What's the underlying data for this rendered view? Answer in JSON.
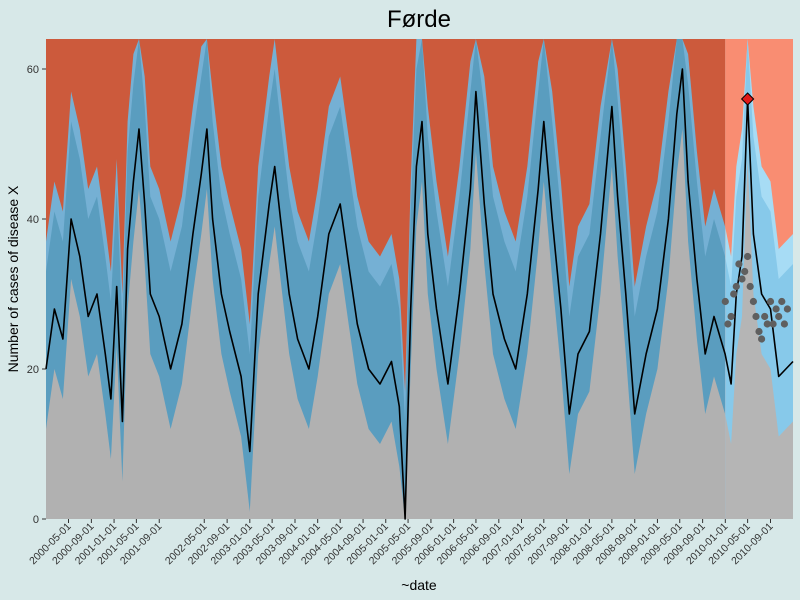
{
  "chart_data": {
    "type": "area",
    "title": "Førde",
    "xlabel": "~date",
    "ylabel": "Number of cases of disease X",
    "ylim": [
      0,
      64
    ],
    "xlim": [
      "2000-01-01",
      "2010-12-31"
    ],
    "forecast_start": "2010-01-01",
    "y_ticks": [
      0,
      20,
      40,
      60
    ],
    "x_ticks": [
      "2000-05-01",
      "2000-09-01",
      "2001-01-01",
      "2001-05-01",
      "2001-09-01",
      "2002-05-01",
      "2002-09-01",
      "2003-01-01",
      "2003-05-01",
      "2003-09-01",
      "2004-01-01",
      "2004-05-01",
      "2004-09-01",
      "2005-01-01",
      "2005-05-01",
      "2005-09-01",
      "2006-01-01",
      "2006-05-01",
      "2006-09-01",
      "2007-01-01",
      "2007-05-01",
      "2007-09-01",
      "2008-01-01",
      "2008-05-01",
      "2008-09-01",
      "2009-01-01",
      "2009-05-01",
      "2009-09-01",
      "2010-01-01",
      "2010-05-01",
      "2010-09-01"
    ],
    "bands": {
      "low": {
        "historical": "#b1b1b1",
        "forecast": "#b5b5b5"
      },
      "normal": {
        "historical": "#5a9dbf",
        "forecast": "#87c9ea"
      },
      "medium": {
        "historical": "#75b0d4",
        "forecast": "#a7dcf5"
      },
      "high": {
        "historical": "#cc5a3c",
        "forecast": "#f98d72"
      }
    },
    "series": [
      {
        "type": "line",
        "color": "#000000",
        "points": [
          [
            "2000-01-01",
            20
          ],
          [
            "2000-02-15",
            28
          ],
          [
            "2000-04-01",
            24
          ],
          [
            "2000-05-15",
            40
          ],
          [
            "2000-07-01",
            35
          ],
          [
            "2000-08-15",
            27
          ],
          [
            "2000-10-01",
            30
          ],
          [
            "2000-11-15",
            22
          ],
          [
            "2000-12-15",
            16
          ],
          [
            "2001-01-15",
            31
          ],
          [
            "2001-02-15",
            13
          ],
          [
            "2001-03-15",
            36
          ],
          [
            "2001-04-15",
            45
          ],
          [
            "2001-05-15",
            52
          ],
          [
            "2001-06-15",
            42
          ],
          [
            "2001-07-15",
            30
          ],
          [
            "2001-09-01",
            27
          ],
          [
            "2001-11-01",
            20
          ],
          [
            "2002-01-01",
            26
          ],
          [
            "2002-03-01",
            38
          ],
          [
            "2002-04-15",
            46
          ],
          [
            "2002-05-15",
            52
          ],
          [
            "2002-06-15",
            40
          ],
          [
            "2002-08-01",
            30
          ],
          [
            "2002-09-15",
            25
          ],
          [
            "2002-11-15",
            19
          ],
          [
            "2003-01-01",
            9
          ],
          [
            "2003-02-15",
            30
          ],
          [
            "2003-04-15",
            42
          ],
          [
            "2003-05-15",
            47
          ],
          [
            "2003-06-15",
            40
          ],
          [
            "2003-08-01",
            30
          ],
          [
            "2003-09-15",
            24
          ],
          [
            "2003-11-15",
            20
          ],
          [
            "2004-01-01",
            27
          ],
          [
            "2004-03-01",
            38
          ],
          [
            "2004-05-01",
            42
          ],
          [
            "2004-06-15",
            34
          ],
          [
            "2004-08-01",
            26
          ],
          [
            "2004-10-01",
            20
          ],
          [
            "2004-12-01",
            18
          ],
          [
            "2005-02-01",
            21
          ],
          [
            "2005-03-15",
            15
          ],
          [
            "2005-04-15",
            0
          ],
          [
            "2005-05-15",
            28
          ],
          [
            "2005-06-15",
            47
          ],
          [
            "2005-07-15",
            53
          ],
          [
            "2005-08-15",
            38
          ],
          [
            "2005-10-01",
            28
          ],
          [
            "2005-12-01",
            18
          ],
          [
            "2006-02-01",
            30
          ],
          [
            "2006-04-01",
            44
          ],
          [
            "2006-05-01",
            57
          ],
          [
            "2006-06-15",
            42
          ],
          [
            "2006-08-01",
            30
          ],
          [
            "2006-10-01",
            24
          ],
          [
            "2006-12-01",
            20
          ],
          [
            "2007-02-01",
            30
          ],
          [
            "2007-04-01",
            44
          ],
          [
            "2007-05-01",
            53
          ],
          [
            "2007-06-15",
            40
          ],
          [
            "2007-08-01",
            28
          ],
          [
            "2007-09-15",
            14
          ],
          [
            "2007-11-01",
            22
          ],
          [
            "2008-01-01",
            25
          ],
          [
            "2008-03-01",
            38
          ],
          [
            "2008-05-01",
            55
          ],
          [
            "2008-06-01",
            43
          ],
          [
            "2008-07-15",
            30
          ],
          [
            "2008-09-01",
            14
          ],
          [
            "2008-11-01",
            22
          ],
          [
            "2009-01-01",
            28
          ],
          [
            "2009-03-01",
            40
          ],
          [
            "2009-04-15",
            54
          ],
          [
            "2009-05-15",
            60
          ],
          [
            "2009-06-15",
            45
          ],
          [
            "2009-08-01",
            32
          ],
          [
            "2009-09-15",
            22
          ],
          [
            "2009-11-01",
            27
          ],
          [
            "2009-12-31",
            22
          ],
          [
            "2010-02-01",
            18
          ],
          [
            "2010-03-01",
            30
          ],
          [
            "2010-04-01",
            35
          ],
          [
            "2010-05-01",
            56
          ],
          [
            "2010-06-01",
            38
          ],
          [
            "2010-07-15",
            30
          ],
          [
            "2010-09-01",
            28
          ],
          [
            "2010-10-15",
            19
          ],
          [
            "2010-12-31",
            21
          ]
        ]
      },
      {
        "type": "scatter",
        "color": "#5f5f5f",
        "points": [
          [
            "2010-01-01",
            29
          ],
          [
            "2010-01-15",
            26
          ],
          [
            "2010-02-01",
            27
          ],
          [
            "2010-02-15",
            30
          ],
          [
            "2010-03-01",
            31
          ],
          [
            "2010-03-15",
            34
          ],
          [
            "2010-04-01",
            32
          ],
          [
            "2010-04-15",
            33
          ],
          [
            "2010-05-01",
            35
          ],
          [
            "2010-05-15",
            31
          ],
          [
            "2010-06-01",
            29
          ],
          [
            "2010-06-15",
            27
          ],
          [
            "2010-07-01",
            25
          ],
          [
            "2010-07-15",
            24
          ],
          [
            "2010-08-01",
            27
          ],
          [
            "2010-08-15",
            26
          ],
          [
            "2010-09-01",
            29
          ],
          [
            "2010-09-15",
            26
          ],
          [
            "2010-10-01",
            28
          ],
          [
            "2010-10-15",
            27
          ],
          [
            "2010-11-01",
            29
          ],
          [
            "2010-11-15",
            26
          ],
          [
            "2010-12-01",
            28
          ]
        ]
      },
      {
        "type": "marker",
        "shape": "diamond",
        "color": "#e01818",
        "points": [
          [
            "2010-05-01",
            56
          ]
        ]
      }
    ]
  }
}
